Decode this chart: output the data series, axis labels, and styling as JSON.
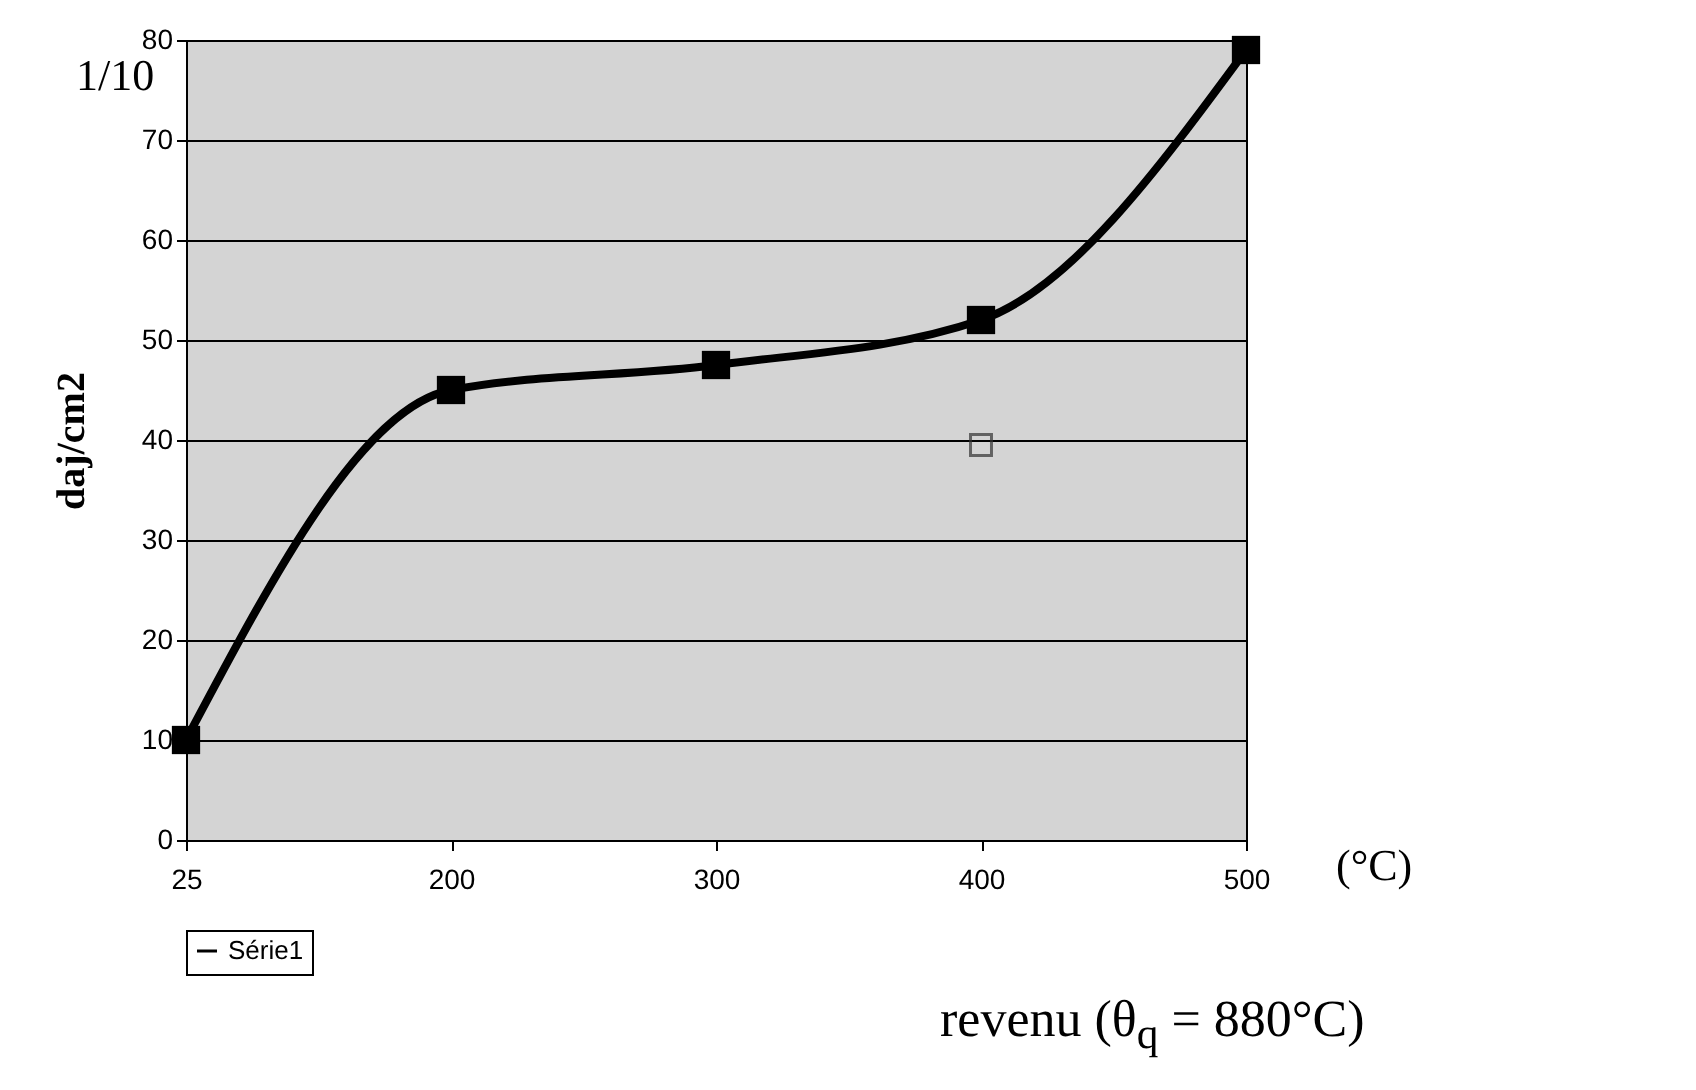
{
  "chart_data": {
    "type": "line",
    "xlabel": "revenu (θ$_{q}$ = 880°C)",
    "ylabel": "daj/cm2",
    "categories": [
      "25",
      "200",
      "300",
      "400",
      "500"
    ],
    "series": [
      {
        "name": "Série1",
        "color": "#000000",
        "values": [
          10,
          45,
          47.5,
          52,
          79
        ],
        "marker": "square"
      },
      {
        "type": "scatter",
        "x": [
          "400"
        ],
        "color": "#333333",
        "values": [
          39.5
        ],
        "marker": "square"
      }
    ],
    "annotations": [
      "1/10",
      "(°C)"
    ],
    "ylim": [
      0,
      80
    ],
    "yticks": [
      0,
      10,
      20,
      30,
      40,
      50,
      60,
      70,
      80
    ],
    "grid": "y",
    "legend": "bottom"
  }
}
